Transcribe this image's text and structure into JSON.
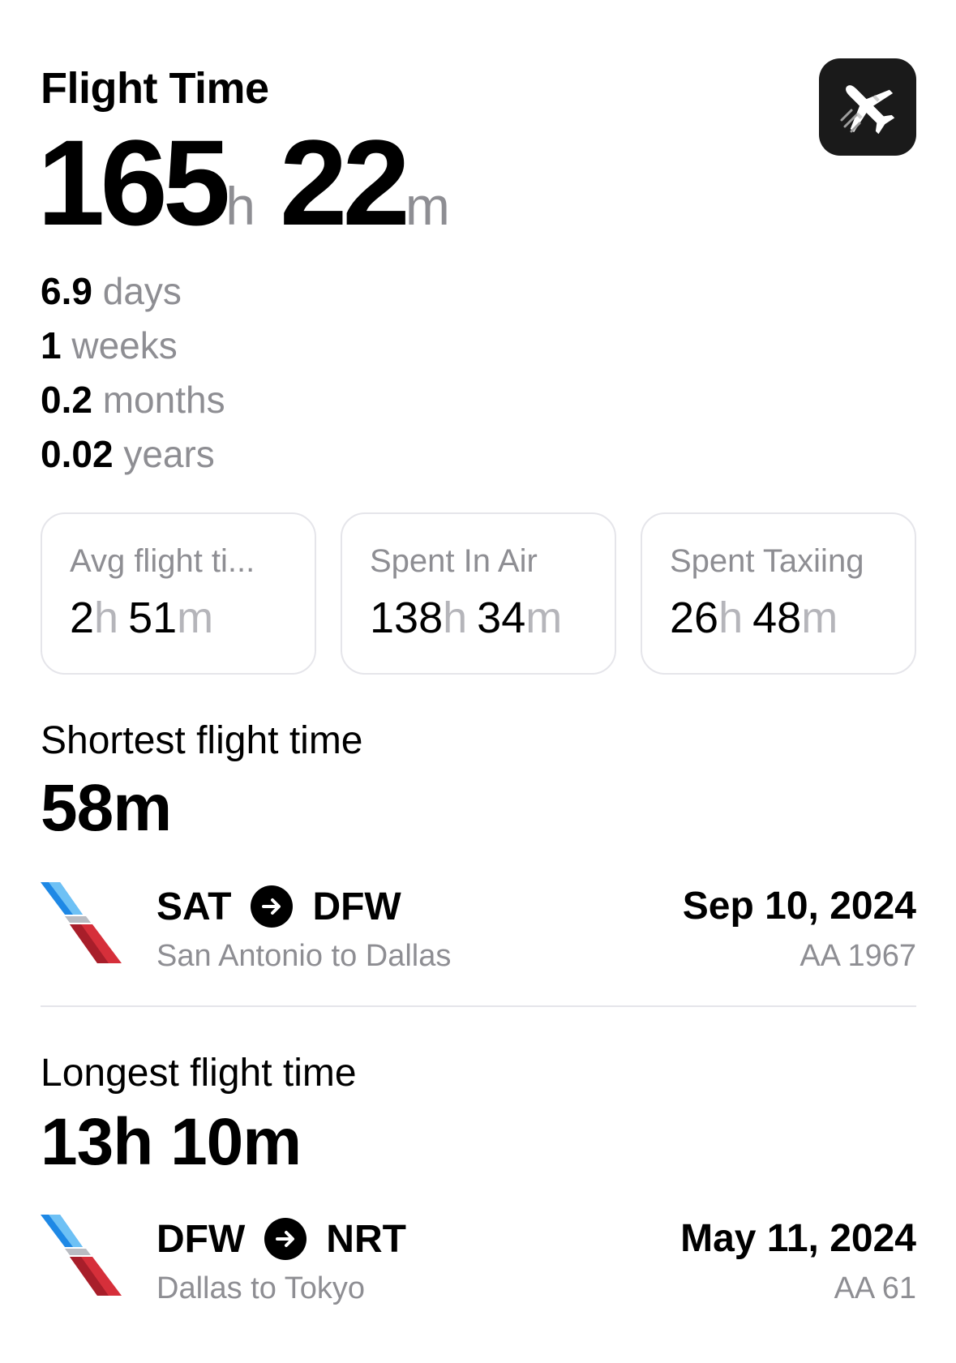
{
  "header": {
    "title": "Flight Time",
    "app_icon": "airplane-icon",
    "total_hours": "165",
    "hours_unit": "h",
    "total_minutes": "22",
    "minutes_unit": "m"
  },
  "conversions": [
    {
      "value": "6.9",
      "unit": "days"
    },
    {
      "value": "1",
      "unit": "weeks"
    },
    {
      "value": "0.2",
      "unit": "months"
    },
    {
      "value": "0.02",
      "unit": "years"
    }
  ],
  "cards": [
    {
      "label": "Avg flight ti...",
      "hours": "2",
      "h_unit": "h",
      "minutes": "51",
      "m_unit": "m"
    },
    {
      "label": "Spent In Air",
      "hours": "138",
      "h_unit": "h",
      "minutes": "34",
      "m_unit": "m"
    },
    {
      "label": "Spent Taxiing",
      "hours": "26",
      "h_unit": "h",
      "minutes": "48",
      "m_unit": "m"
    }
  ],
  "shortest": {
    "label": "Shortest flight time",
    "value": "58m",
    "from": "SAT",
    "to": "DFW",
    "description": "San Antonio to Dallas",
    "date": "Sep 10, 2024",
    "flight_number": "AA 1967"
  },
  "longest": {
    "label": "Longest flight time",
    "value": "13h 10m",
    "from": "DFW",
    "to": "NRT",
    "description": "Dallas to Tokyo",
    "date": "May 11, 2024",
    "flight_number": "AA 61"
  },
  "colors": {
    "secondary_text": "#8e8e93",
    "card_border": "#e5e5ea",
    "airline_blue": "#1e88e5",
    "airline_red": "#d62f3a"
  }
}
